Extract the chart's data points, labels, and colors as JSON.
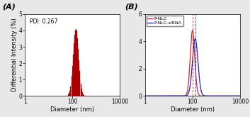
{
  "panel_A": {
    "label": "(A)",
    "annotation": "PDI: 0.267",
    "peak_nm": 140,
    "sigma_log": 0.115,
    "peak_height": 4.1,
    "ylim": [
      0,
      5
    ],
    "yticks": [
      0,
      1,
      2,
      3,
      4,
      5
    ],
    "xticks": [
      1,
      100,
      10000
    ],
    "xtick_labels": [
      "1",
      "100",
      "10000"
    ],
    "xlabel": "Diameter (nm)",
    "ylabel": "Differential Intensity (%)",
    "bar_color": "#cc0000",
    "bar_edge_color": "#770000",
    "n_bars": 55
  },
  "panel_B": {
    "label": "(B)",
    "ylim": [
      0,
      6
    ],
    "yticks": [
      0,
      2,
      4,
      6
    ],
    "xticks": [
      1,
      100,
      10000
    ],
    "xtick_labels": [
      "1",
      "100",
      "10000"
    ],
    "xlabel": "Diameter (nm)",
    "red_peak_nm": 100,
    "red_sigma_log": 0.095,
    "red_height": 4.8,
    "blue_peak_nm": 130,
    "blue_sigma_log": 0.115,
    "blue_height": 4.2,
    "red_color": "#dd2222",
    "blue_color": "#2222cc",
    "legend_red": "P-NLC",
    "legend_blue": "P-NLC-siRNA"
  },
  "bg_color": "#e8e8e8",
  "fig_width": 3.53,
  "fig_height": 1.65,
  "panel_label_fontsize": 8,
  "tick_fontsize": 5.5,
  "axis_label_fontsize": 6,
  "annotation_fontsize": 5.5,
  "legend_fontsize": 4.5
}
